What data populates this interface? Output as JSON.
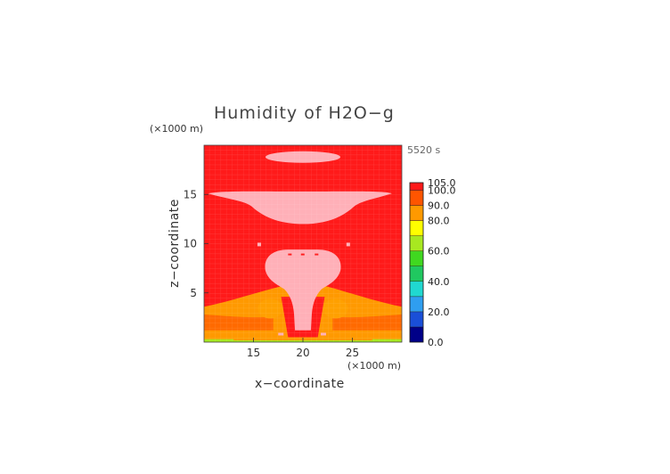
{
  "chart_data": {
    "type": "heatmap",
    "title": "Humidity of H2O−g",
    "time_label": "5520 s",
    "xlabel": "x−coordinate",
    "ylabel": "z−coordinate",
    "x_unit": "(×1000 m)",
    "z_unit": "(×1000 m)",
    "xlim": [
      10,
      30
    ],
    "zlim": [
      0,
      20
    ],
    "x_ticks": [
      15,
      20,
      25
    ],
    "z_ticks": [
      5,
      10,
      15
    ],
    "colorbar": {
      "levels": [
        0,
        10,
        20,
        30,
        40,
        50,
        60,
        70,
        80,
        90,
        100,
        105
      ],
      "labels": [
        "0.0",
        "20.0",
        "40.0",
        "60.0",
        "80.0",
        "90.0",
        "100.0",
        "105.0"
      ],
      "label_values": [
        0,
        20,
        40,
        60,
        80,
        90,
        100,
        105
      ],
      "colors": [
        "#000088",
        "#1a4fd8",
        "#2f9ef0",
        "#20d8d0",
        "#20c860",
        "#40d820",
        "#a8e820",
        "#ffff00",
        "#ff9900",
        "#ff5500",
        "#ff1a1a",
        "#ffffff"
      ]
    },
    "regions": [
      {
        "label": "background",
        "value": 100
      },
      {
        "label": "top cloud",
        "x_center": 20,
        "z_center": 18.8,
        "value": 104
      },
      {
        "label": "anvil",
        "x_range": [
          10.5,
          29
        ],
        "z_range": [
          12,
          15.3
        ],
        "value": 104
      },
      {
        "label": "convective column",
        "x_range": [
          16,
          24
        ],
        "z_range": [
          1,
          9.5
        ],
        "value": 104
      },
      {
        "label": "lower boundary layer",
        "z_range": [
          0,
          4
        ],
        "value": 80
      },
      {
        "label": "surface",
        "z_range": [
          0,
          0.3
        ],
        "value": 62
      }
    ]
  }
}
